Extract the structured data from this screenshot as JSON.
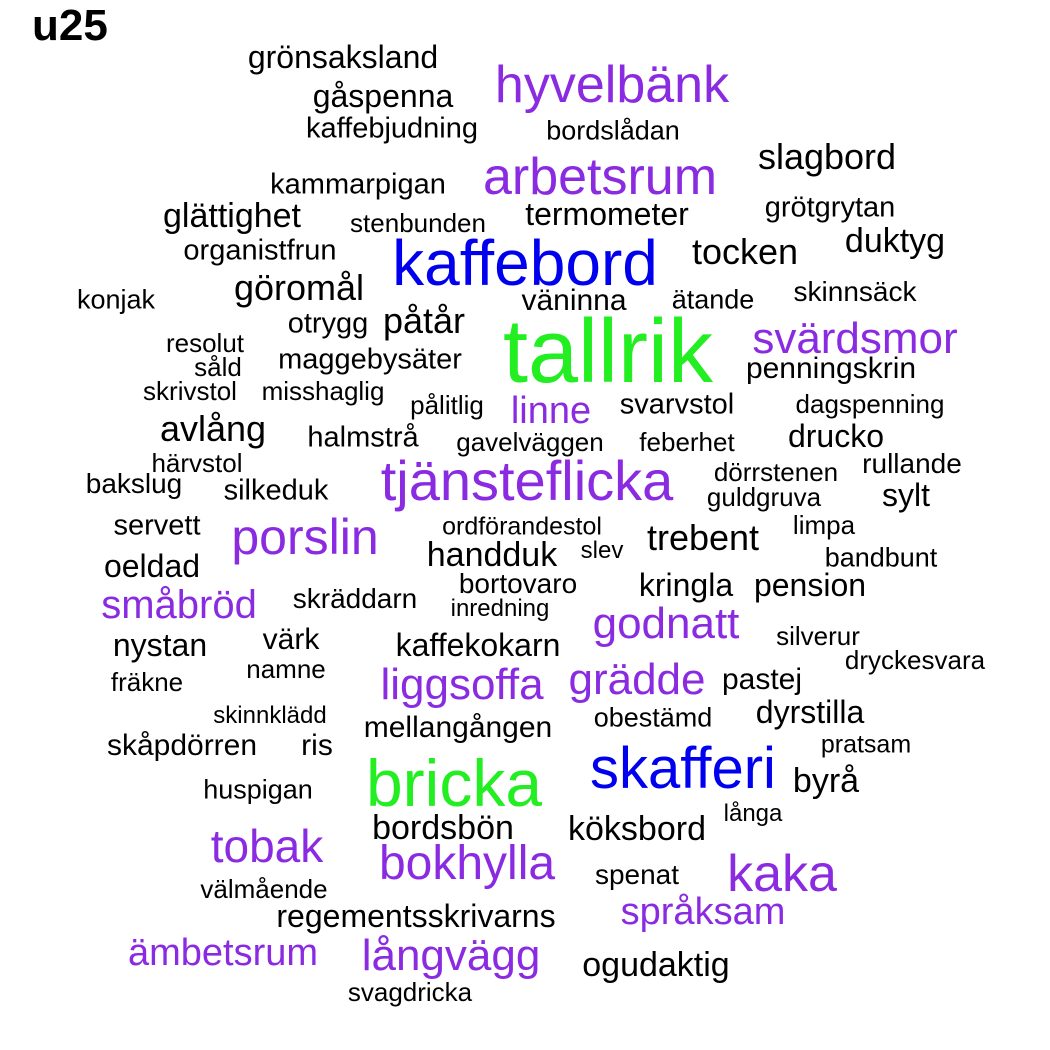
{
  "title": "u25",
  "colors": {
    "green": "#22ee22",
    "blue": "#0000ee",
    "purple": "#8a2be2",
    "black": "#000000"
  },
  "words": [
    "grönsaksland",
    "hyvelbänk",
    "gåspenna",
    "kaffebjudning",
    "bordslådan",
    "slagbord",
    "arbetsrum",
    "kammarpigan",
    "grötgrytan",
    "glättighet",
    "stenbunden",
    "termometer",
    "duktyg",
    "organistfrun",
    "kaffebord",
    "tocken",
    "göromål",
    "skinnsäck",
    "konjak",
    "väninna",
    "ätande",
    "påtår",
    "otrygg",
    "svärdsmor",
    "resolut",
    "tallrik",
    "såld",
    "maggebysäter",
    "penningskrin",
    "skrivstol",
    "misshaglig",
    "pålitlig",
    "linne",
    "svarvstol",
    "dagspenning",
    "avlång",
    "halmstrå",
    "gavelväggen",
    "feberhet",
    "drucko",
    "härvstol",
    "rullande",
    "dörrstenen",
    "tjänsteflicka",
    "bakslug",
    "silkeduk",
    "guldgruva",
    "sylt",
    "servett",
    "limpa",
    "porslin",
    "ordförandestol",
    "trebent",
    "slev",
    "handduk",
    "oeldad",
    "bandbunt",
    "bortovaro",
    "kringla",
    "pension",
    "småbröd",
    "skräddarn",
    "inredning",
    "godnatt",
    "silverur",
    "nystan",
    "värk",
    "kaffekokarn",
    "dryckesvara",
    "namne",
    "liggsoffa",
    "grädde",
    "pastej",
    "fräkne",
    "dyrstilla",
    "skinnklädd",
    "obestämd",
    "mellangången",
    "pratsam",
    "skåpdörren",
    "ris",
    "bricka",
    "skafferi",
    "byrå",
    "huspigan",
    "långa",
    "bordsbön",
    "köksbord",
    "tobak",
    "bokhylla",
    "spenat",
    "kaka",
    "välmående",
    "regementsskrivarns",
    "språksam",
    "ämbetsrum",
    "långvägg",
    "ogudaktig",
    "svagdricka"
  ]
}
